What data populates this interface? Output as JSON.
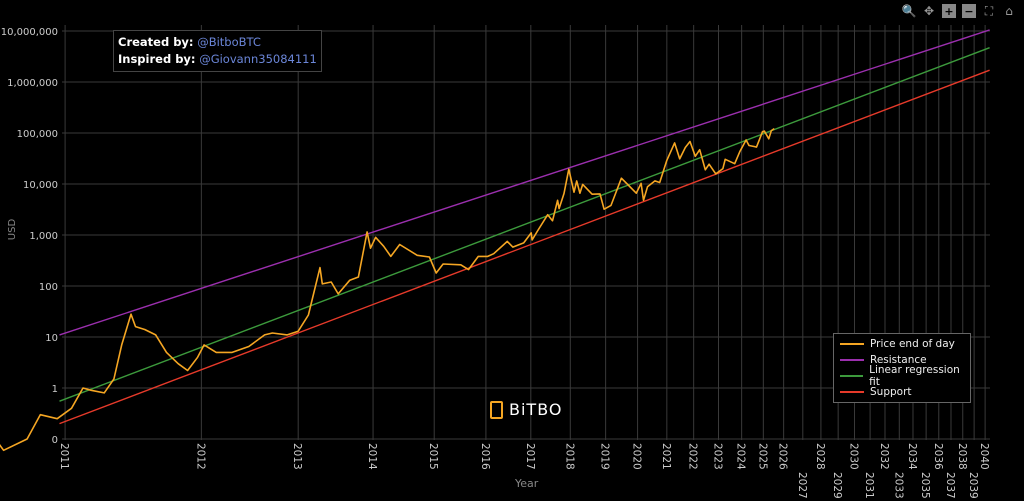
{
  "annotation": {
    "created_label": "Created by:",
    "created_value": "@BitboBTC",
    "inspired_label": "Inspired by:",
    "inspired_value": "@Giovann35084111"
  },
  "logo": {
    "text": "BiTBO"
  },
  "modebar": {
    "icons": [
      "zoom-icon",
      "pan-icon",
      "zoom-in-icon",
      "zoom-out-icon",
      "autoscale-icon",
      "reset-axes-icon"
    ]
  },
  "chart_data": {
    "type": "line",
    "xlabel": "Year",
    "ylabel": "USD",
    "x_scale": "log (days since genesis block), labeled by year",
    "y_scale": "log",
    "grid": true,
    "legend_position": "bottom-right",
    "xlim": [
      "2011-01-01",
      "2040-01-01"
    ],
    "ylim": [
      0.1,
      10000000
    ],
    "x_ticks": [
      "2011",
      "2012",
      "2013",
      "2014",
      "2015",
      "2016",
      "2017",
      "2018",
      "2019",
      "2020",
      "2021",
      "2022",
      "2023",
      "2024",
      "2025",
      "2026",
      "2027",
      "2028",
      "2029",
      "2030",
      "2031",
      "2032",
      "2033",
      "2034",
      "2035",
      "2036",
      "2037",
      "2038",
      "2039",
      "2040"
    ],
    "y_ticks": [
      {
        "v": 0.1,
        "label": "0"
      },
      {
        "v": 1,
        "label": "1"
      },
      {
        "v": 10,
        "label": "10"
      },
      {
        "v": 100,
        "label": "100"
      },
      {
        "v": 1000,
        "label": "1,000"
      },
      {
        "v": 10000,
        "label": "10,000"
      },
      {
        "v": 100000,
        "label": "100,000"
      },
      {
        "v": 1000000,
        "label": "1,000,000"
      },
      {
        "v": 10000000,
        "label": "10,000,000"
      }
    ],
    "series": [
      {
        "name": "Price end of day",
        "color": "#f5a623",
        "points": [
          [
            "2010-07-18",
            0.3
          ],
          [
            "2010-09-01",
            0.06
          ],
          [
            "2010-10-15",
            0.1
          ],
          [
            "2010-11-10",
            0.3
          ],
          [
            "2010-12-15",
            0.25
          ],
          [
            "2011-01-15",
            0.4
          ],
          [
            "2011-02-10",
            1.0
          ],
          [
            "2011-03-01",
            0.9
          ],
          [
            "2011-04-01",
            0.8
          ],
          [
            "2011-04-25",
            1.5
          ],
          [
            "2011-05-15",
            7
          ],
          [
            "2011-06-08",
            28
          ],
          [
            "2011-06-20",
            16
          ],
          [
            "2011-07-15",
            14
          ],
          [
            "2011-08-15",
            11
          ],
          [
            "2011-09-15",
            5
          ],
          [
            "2011-10-20",
            3
          ],
          [
            "2011-11-18",
            2.2
          ],
          [
            "2011-12-20",
            4
          ],
          [
            "2012-01-10",
            7
          ],
          [
            "2012-02-20",
            5
          ],
          [
            "2012-04-15",
            5
          ],
          [
            "2012-06-15",
            6.5
          ],
          [
            "2012-08-15",
            11
          ],
          [
            "2012-09-15",
            12
          ],
          [
            "2012-11-15",
            11
          ],
          [
            "2013-01-01",
            13
          ],
          [
            "2013-02-15",
            27
          ],
          [
            "2013-04-09",
            230
          ],
          [
            "2013-04-20",
            110
          ],
          [
            "2013-06-01",
            120
          ],
          [
            "2013-07-05",
            70
          ],
          [
            "2013-09-01",
            130
          ],
          [
            "2013-10-15",
            150
          ],
          [
            "2013-11-30",
            1150
          ],
          [
            "2013-12-18",
            550
          ],
          [
            "2014-01-15",
            900
          ],
          [
            "2014-03-01",
            600
          ],
          [
            "2014-04-10",
            380
          ],
          [
            "2014-06-01",
            650
          ],
          [
            "2014-09-15",
            400
          ],
          [
            "2014-12-01",
            370
          ],
          [
            "2015-01-14",
            180
          ],
          [
            "2015-03-01",
            270
          ],
          [
            "2015-07-01",
            260
          ],
          [
            "2015-08-25",
            210
          ],
          [
            "2015-11-05",
            380
          ],
          [
            "2016-01-15",
            380
          ],
          [
            "2016-03-01",
            430
          ],
          [
            "2016-06-17",
            750
          ],
          [
            "2016-08-01",
            580
          ],
          [
            "2016-11-01",
            700
          ],
          [
            "2017-01-04",
            1100
          ],
          [
            "2017-01-12",
            800
          ],
          [
            "2017-03-01",
            1200
          ],
          [
            "2017-06-01",
            2500
          ],
          [
            "2017-07-15",
            1900
          ],
          [
            "2017-09-01",
            4800
          ],
          [
            "2017-09-15",
            3300
          ],
          [
            "2017-11-01",
            6500
          ],
          [
            "2017-12-17",
            19500
          ],
          [
            "2018-02-06",
            6900
          ],
          [
            "2018-03-05",
            11500
          ],
          [
            "2018-04-06",
            6600
          ],
          [
            "2018-05-05",
            9800
          ],
          [
            "2018-08-10",
            6300
          ],
          [
            "2018-11-01",
            6400
          ],
          [
            "2018-12-15",
            3200
          ],
          [
            "2019-03-01",
            3800
          ],
          [
            "2019-06-26",
            13000
          ],
          [
            "2019-09-01",
            10000
          ],
          [
            "2019-12-17",
            6600
          ],
          [
            "2020-02-12",
            10300
          ],
          [
            "2020-03-12",
            4800
          ],
          [
            "2020-05-01",
            8800
          ],
          [
            "2020-08-01",
            11500
          ],
          [
            "2020-10-01",
            10700
          ],
          [
            "2020-12-31",
            29000
          ],
          [
            "2021-04-14",
            64000
          ],
          [
            "2021-06-22",
            31000
          ],
          [
            "2021-09-06",
            52000
          ],
          [
            "2021-11-10",
            68000
          ],
          [
            "2022-01-24",
            35000
          ],
          [
            "2022-03-28",
            47000
          ],
          [
            "2022-06-18",
            19000
          ],
          [
            "2022-08-13",
            24500
          ],
          [
            "2022-11-21",
            15800
          ],
          [
            "2023-03-10",
            20000
          ],
          [
            "2023-04-14",
            30500
          ],
          [
            "2023-09-11",
            25000
          ],
          [
            "2023-12-05",
            44000
          ],
          [
            "2024-03-14",
            73000
          ],
          [
            "2024-05-01",
            57000
          ],
          [
            "2024-08-05",
            54000
          ],
          [
            "2024-09-06",
            53000
          ],
          [
            "2024-12-17",
            106000
          ],
          [
            "2025-01-20",
            109000
          ],
          [
            "2025-04-08",
            77000
          ],
          [
            "2025-05-22",
            111000
          ],
          [
            "2025-07-14",
            122000
          ]
        ]
      },
      {
        "name": "Resistance",
        "color": "#9b2fae",
        "points": [
          [
            "2010-12-20",
            11
          ],
          [
            "2040-06-01",
            10500000
          ]
        ]
      },
      {
        "name": "Linear regression fit",
        "color": "#3c9a3c",
        "points": [
          [
            "2010-12-20",
            0.55
          ],
          [
            "2040-06-01",
            4700000
          ]
        ]
      },
      {
        "name": "Support",
        "color": "#e63a2a",
        "points": [
          [
            "2010-12-20",
            0.2
          ],
          [
            "2040-06-01",
            1700000
          ]
        ]
      }
    ]
  }
}
